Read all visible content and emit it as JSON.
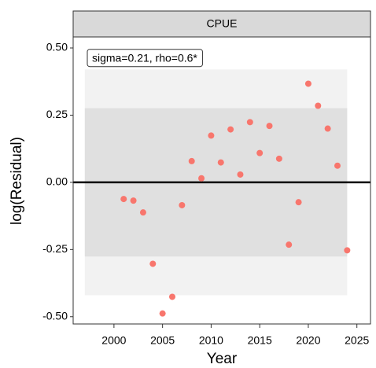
{
  "chart_data": {
    "type": "scatter",
    "panel_label": "CPUE",
    "annotation": "sigma=0.21, rho=0.6*",
    "x_label": "Year",
    "y_label": "log(Residual)",
    "x": [
      2001,
      2002,
      2003,
      2004,
      2005,
      2006,
      2007,
      2008,
      2009,
      2010,
      2011,
      2012,
      2013,
      2014,
      2015,
      2016,
      2017,
      2018,
      2019,
      2020,
      2021,
      2022,
      2023,
      2024
    ],
    "values": [
      -0.062,
      -0.068,
      -0.112,
      -0.303,
      -0.488,
      -0.426,
      -0.085,
      0.079,
      0.015,
      0.174,
      0.074,
      0.197,
      0.029,
      0.224,
      0.109,
      0.21,
      0.088,
      -0.232,
      -0.074,
      0.367,
      0.285,
      0.2,
      0.062,
      -0.253
    ],
    "color": "#f8766d",
    "bands": [
      {
        "lower": -0.42,
        "upper": 0.42,
        "color": "#f2f2f2"
      },
      {
        "lower": -0.276,
        "upper": 0.276,
        "color": "#e0e0e0"
      }
    ],
    "band_x": [
      1997,
      2024
    ],
    "xlim": [
      1995.8,
      2026.4
    ],
    "ylim": [
      -0.527,
      0.541
    ],
    "xticks": [
      2000,
      2005,
      2010,
      2015,
      2020,
      2025
    ],
    "yticks": [
      {
        "value": 0.5,
        "label": "0.50"
      },
      0.25,
      {
        "value": 0,
        "label": "0.00"
      },
      -0.25,
      {
        "value": -0.5,
        "label": "-0.50"
      }
    ],
    "hline": 0
  }
}
